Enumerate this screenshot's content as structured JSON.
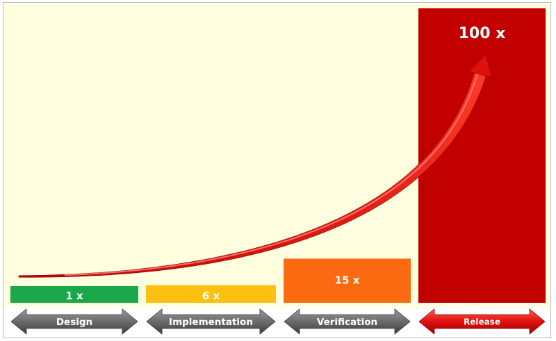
{
  "chart_data": {
    "type": "bar",
    "categories": [
      "Design",
      "Implementation",
      "Verification",
      "Release"
    ],
    "values": [
      1,
      6,
      15,
      100
    ],
    "value_labels": [
      "1 x",
      "6 x",
      "15 x",
      "100 x"
    ],
    "ylim": [
      0,
      100
    ],
    "grid": false,
    "legend": "none",
    "title": "",
    "xlabel": "",
    "ylabel": "",
    "colors": {
      "bars": [
        "#1aa84a",
        "#fdc010",
        "#fb6a10",
        "#c20000"
      ],
      "background": "#ffffe0",
      "phase_arrow_default": "#6b6b6b",
      "phase_arrow_highlight": "#e01010",
      "trend_arrow": "#e01313"
    },
    "highlighted_phase": "Release"
  }
}
